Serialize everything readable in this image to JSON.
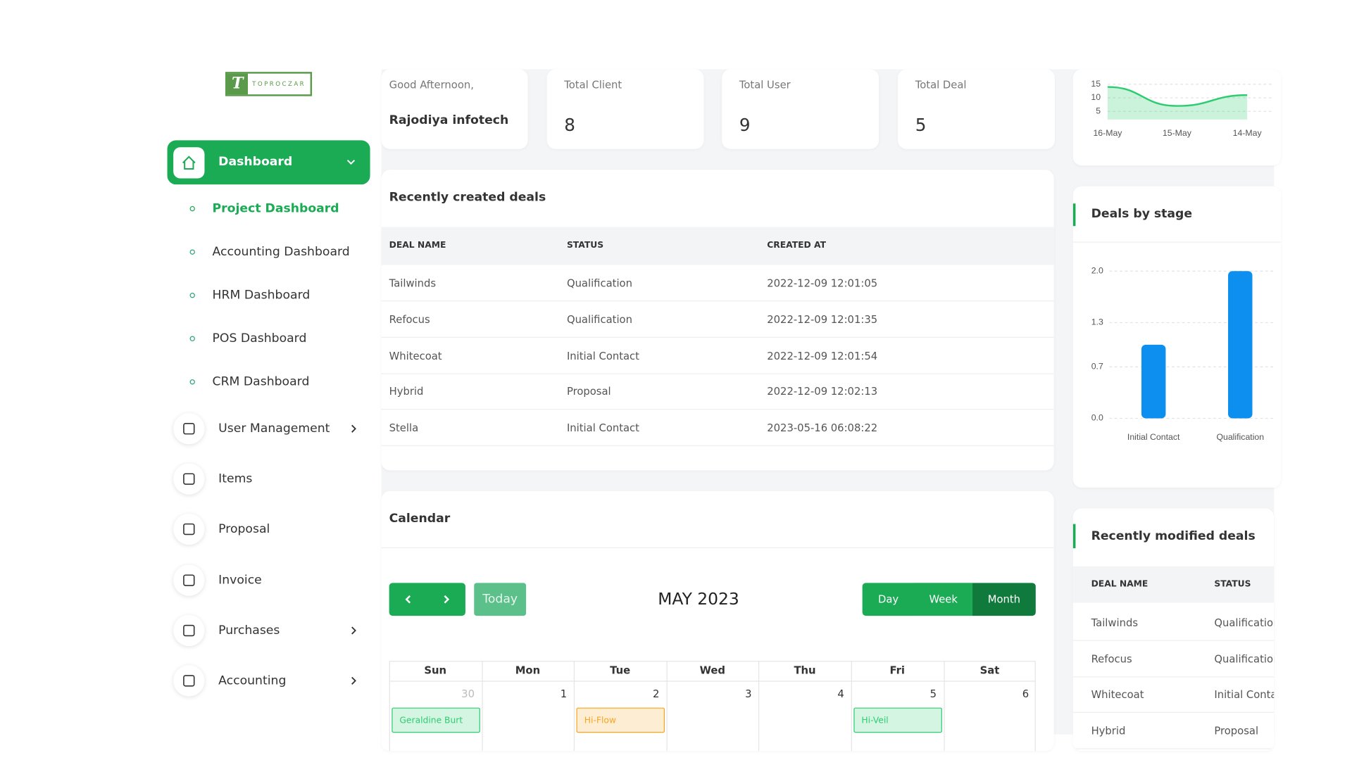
{
  "logo": {
    "mark": "T",
    "text": "TOPROCZAR"
  },
  "sidebar": {
    "dashboard": "Dashboard",
    "submenu": [
      "Project Dashboard",
      "Accounting Dashboard",
      "HRM Dashboard",
      "POS Dashboard",
      "CRM Dashboard"
    ],
    "menu": [
      "User Management",
      "Items",
      "Proposal",
      "Invoice",
      "Purchases",
      "Accounting"
    ]
  },
  "greeting": {
    "label": "Good Afternoon,",
    "name": "Rajodiya infotech"
  },
  "stats": [
    {
      "label": "Total Client",
      "value": 8
    },
    {
      "label": "Total User",
      "value": 9
    },
    {
      "label": "Total Deal",
      "value": 5
    }
  ],
  "chart_data": [
    {
      "type": "area",
      "categories": [
        "16-May",
        "15-May",
        "14-May"
      ],
      "values": [
        14,
        7,
        11
      ],
      "color": "#2ecc71",
      "ylim": [
        2,
        17
      ],
      "yticks": [
        5,
        10,
        15
      ],
      "grid": true
    },
    {
      "type": "bar",
      "title": "Deals by stage",
      "categories": [
        "Initial Contact",
        "Qualification"
      ],
      "values": [
        1,
        2
      ],
      "color": "#0d8ff0",
      "ylim": [
        0,
        2
      ],
      "yticks": [
        {
          "value": 0,
          "label": "0.0"
        },
        0.7,
        1.3,
        {
          "value": 2,
          "label": "2.0"
        }
      ],
      "grid": true
    }
  ],
  "recent_deals": {
    "title": "Recently created deals",
    "columns": [
      "DEAL NAME",
      "STATUS",
      "CREATED AT"
    ],
    "rows": [
      [
        "Tailwinds",
        "Qualification",
        "2022-12-09 12:01:05"
      ],
      [
        "Refocus",
        "Qualification",
        "2022-12-09 12:01:35"
      ],
      [
        "Whitecoat",
        "Initial Contact",
        "2022-12-09 12:01:54"
      ],
      [
        "Hybrid",
        "Proposal",
        "2022-12-09 12:02:13"
      ],
      [
        "Stella",
        "Initial Contact",
        "2023-05-16 06:08:22"
      ]
    ]
  },
  "calendar": {
    "title": "Calendar",
    "today": "Today",
    "month": "MAY 2023",
    "views": [
      "Day",
      "Week",
      "Month"
    ],
    "weekdays": [
      "Sun",
      "Mon",
      "Tue",
      "Wed",
      "Thu",
      "Fri",
      "Sat"
    ],
    "dates": [
      30,
      1,
      2,
      3,
      4,
      5,
      6
    ],
    "events": [
      "Geraldine Burt",
      null,
      "Hi-Flow",
      null,
      null,
      "Hi-Veil",
      null
    ],
    "event_colors": [
      "#2ecc71",
      null,
      "#f5a623",
      null,
      null,
      "#2ecc71",
      null
    ]
  },
  "modified_deals": {
    "title": "Recently modified deals",
    "columns": [
      "DEAL NAME",
      "STATUS"
    ],
    "rows": [
      [
        "Tailwinds",
        "Qualification"
      ],
      [
        "Refocus",
        "Qualification"
      ],
      [
        "Whitecoat",
        "Initial Contact"
      ],
      [
        "Hybrid",
        "Proposal"
      ]
    ]
  }
}
